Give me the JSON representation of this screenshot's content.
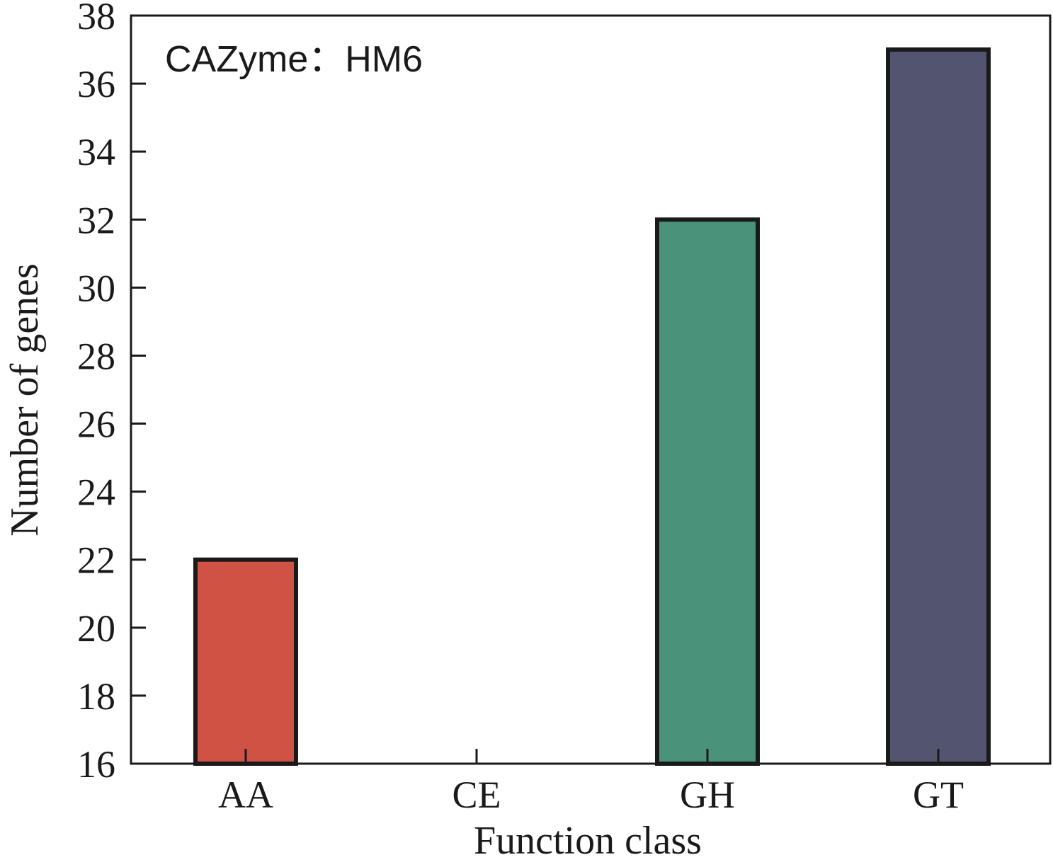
{
  "chart_data": {
    "type": "bar",
    "categories": [
      "AA",
      "CE",
      "GH",
      "GT"
    ],
    "values": [
      22,
      16,
      32,
      37
    ],
    "colors": [
      "#d05244",
      "#ffffff",
      "#4a937a",
      "#525470"
    ],
    "edge_color": "#1a1a1a",
    "title": "",
    "annotation": "CAZyme：HM6",
    "xlabel": "Function class",
    "ylabel": "Number of genes",
    "ylim": [
      16,
      38
    ],
    "yticks": [
      16,
      18,
      20,
      22,
      24,
      26,
      28,
      30,
      32,
      34,
      36,
      38
    ],
    "ytick_labels": [
      "16",
      "18",
      "20",
      "22",
      "24",
      "26",
      "28",
      "30",
      "32",
      "34",
      "36",
      "38"
    ],
    "grid": false,
    "legend": "none"
  }
}
